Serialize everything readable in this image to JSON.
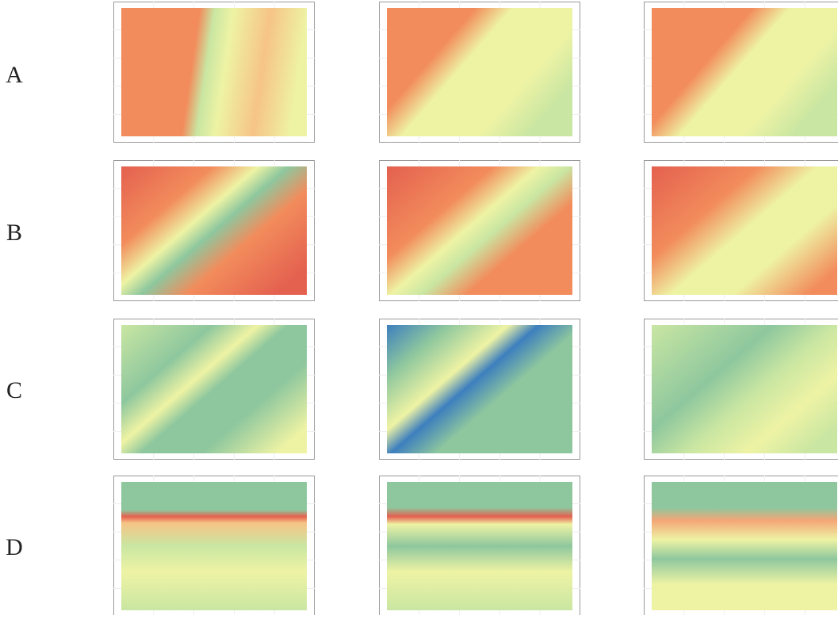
{
  "rows": [
    {
      "label": "A"
    },
    {
      "label": "B"
    },
    {
      "label": "C"
    },
    {
      "label": "D"
    }
  ]
}
